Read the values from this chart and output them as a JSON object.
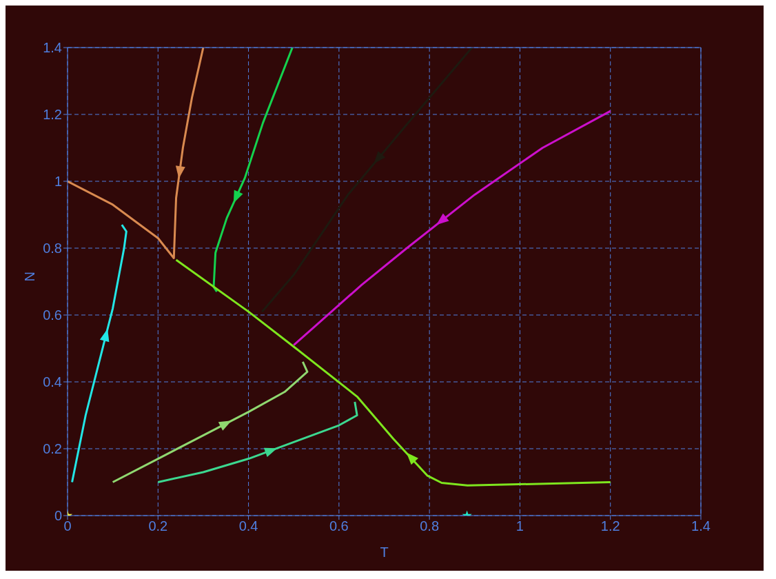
{
  "chart_data": {
    "type": "line",
    "xlabel": "T",
    "ylabel": "N",
    "xlim": [
      0,
      1.4
    ],
    "ylim": [
      0,
      1.4
    ],
    "xticks": [
      0,
      0.2,
      0.4,
      0.6,
      0.8,
      1,
      1.2,
      1.4
    ],
    "yticks": [
      0,
      0.2,
      0.4,
      0.6,
      0.8,
      1,
      1.2,
      1.4
    ],
    "grid": true,
    "marker": "none",
    "line_style": "solid",
    "series": [
      {
        "color": "#22e6e6",
        "x": [
          0.01,
          0.04,
          0.07,
          0.1,
          0.125,
          0.13,
          0.12
        ],
        "values": [
          0.1,
          0.3,
          0.46,
          0.62,
          0.8,
          0.85,
          0.87
        ]
      },
      {
        "color": "#d98a50",
        "x": [
          0.3,
          0.275,
          0.255,
          0.24,
          0.235,
          0.2,
          0.1,
          0
        ],
        "values": [
          1.4,
          1.25,
          1.1,
          0.95,
          0.77,
          0.83,
          0.93,
          1.0
        ]
      },
      {
        "color": "#14d24e",
        "x": [
          0.497,
          0.432,
          0.392,
          0.352,
          0.327,
          0.323,
          0.33
        ],
        "values": [
          1.4,
          1.175,
          1.01,
          0.89,
          0.786,
          0.684,
          0.67
        ]
      },
      {
        "color": "#1e1a10",
        "x": [
          0.894,
          0.75,
          0.62,
          0.5,
          0.43
        ],
        "values": [
          1.4,
          1.17,
          0.96,
          0.72,
          0.61
        ]
      },
      {
        "color": "#cc10cc",
        "x": [
          1.2,
          1.05,
          0.9,
          0.75,
          0.65,
          0.55,
          0.5
        ],
        "values": [
          1.21,
          1.1,
          0.96,
          0.8,
          0.69,
          0.57,
          0.51
        ]
      },
      {
        "color": "#7ee61e",
        "x": [
          1.2,
          0.884,
          0.827,
          0.795,
          0.72,
          0.64,
          0.505,
          0.4,
          0.24
        ],
        "values": [
          0.1,
          0.09,
          0.098,
          0.12,
          0.23,
          0.356,
          0.5,
          0.61,
          0.765
        ]
      },
      {
        "color": "#90d870",
        "x": [
          0.1,
          0.2,
          0.3,
          0.4,
          0.48,
          0.53,
          0.52
        ],
        "values": [
          0.1,
          0.17,
          0.24,
          0.31,
          0.37,
          0.43,
          0.46
        ]
      },
      {
        "color": "#3cd890",
        "x": [
          0.2,
          0.3,
          0.4,
          0.5,
          0.6,
          0.64,
          0.635
        ],
        "values": [
          0.1,
          0.13,
          0.17,
          0.22,
          0.27,
          0.3,
          0.34
        ]
      },
      {
        "type": "scatter",
        "marker": "star",
        "color": "#e6e640",
        "x": [
          0
        ],
        "values": [
          0
        ]
      },
      {
        "type": "scatter",
        "marker": "star",
        "color": "#22e6c8",
        "x": [
          0.883
        ],
        "values": [
          0
        ]
      }
    ]
  }
}
